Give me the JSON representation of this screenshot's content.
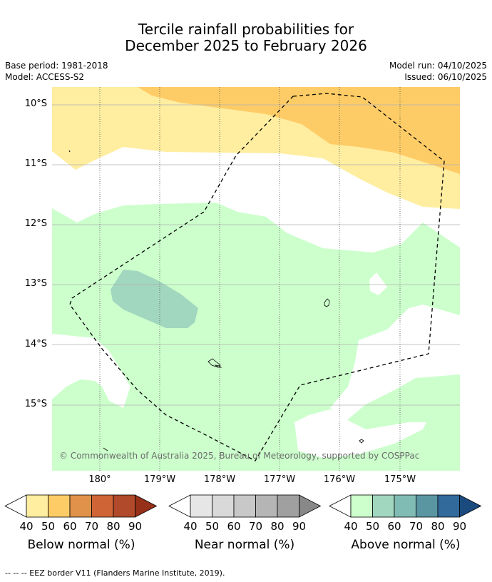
{
  "title": {
    "line1": "Tercile rainfall probabilities for",
    "line2": "December 2025 to February 2026"
  },
  "meta": {
    "base_period": "Base period: 1981-2018",
    "model": "Model: ACCESS-S2",
    "model_run": "Model run: 04/10/2025",
    "issued": "Issued: 06/10/2025"
  },
  "map": {
    "lat_labels": [
      "10°S",
      "11°S",
      "12°S",
      "13°S",
      "14°S",
      "15°S"
    ],
    "lon_labels": [
      "180°",
      "179°W",
      "178°W",
      "177°W",
      "176°W",
      "175°W"
    ],
    "copyright": "© Commonwealth of Australia 2025, Bureau of Meteorology, supported by COSPPac",
    "colors": {
      "below_40": "#ffeda0",
      "below_50": "#fecc66",
      "above_40": "#ccffcc",
      "above_50": "#a1d6bf",
      "gridline": "#b0b0b0",
      "eez": "#000000"
    }
  },
  "colorbars": [
    {
      "caption": "Below normal (%)",
      "ticks": [
        "40",
        "50",
        "60",
        "70",
        "80",
        "90"
      ],
      "colors": [
        "#ffeda0",
        "#fecc66",
        "#e0924a",
        "#cf6436",
        "#b04a2a",
        "#963019"
      ]
    },
    {
      "caption": "Near normal (%)",
      "ticks": [
        "40",
        "50",
        "60",
        "70",
        "80",
        "90"
      ],
      "colors": [
        "#e6e6e6",
        "#d9d9d9",
        "#c8c8c8",
        "#b5b5b5",
        "#a0a0a0",
        "#888888"
      ]
    },
    {
      "caption": "Above normal (%)",
      "ticks": [
        "40",
        "50",
        "60",
        "70",
        "80",
        "90"
      ],
      "colors": [
        "#ccffcc",
        "#a1d6bf",
        "#80bcb4",
        "#5a96a2",
        "#326a9c",
        "#1a4a7e"
      ]
    }
  ],
  "footnote": "--  --  -- EEZ border V11 (Flanders Marine Institute, 2019)."
}
